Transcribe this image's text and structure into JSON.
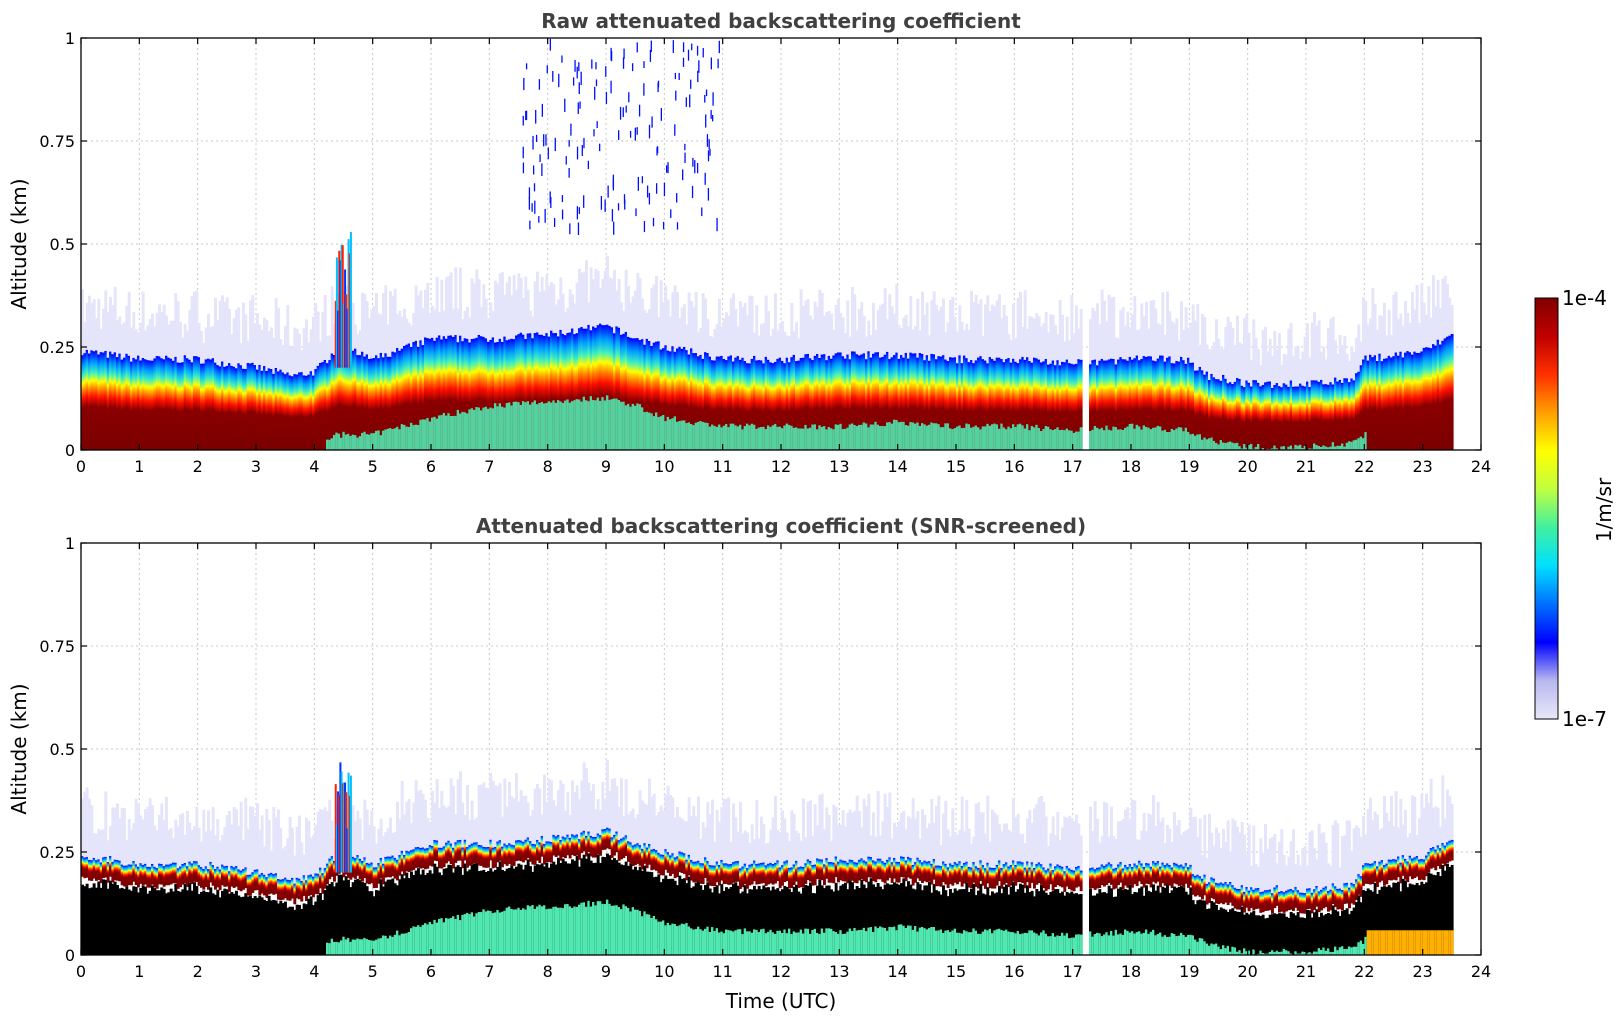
{
  "chart_data": [
    {
      "type": "heatmap",
      "title": "Raw attenuated backscattering coefficient",
      "xlabel": "",
      "ylabel": "Altitude (km)",
      "xlim": [
        0,
        24
      ],
      "ylim": [
        0,
        1
      ],
      "x_ticks": [
        "0",
        "1",
        "2",
        "3",
        "4",
        "5",
        "6",
        "7",
        "8",
        "9",
        "10",
        "11",
        "12",
        "13",
        "14",
        "15",
        "16",
        "17",
        "18",
        "19",
        "20",
        "21",
        "22",
        "23",
        "24"
      ],
      "y_ticks": [
        "0",
        "0.25",
        "0.5",
        "0.75",
        "1"
      ],
      "grid": true,
      "data_end_hour": 23.5,
      "gap_hour": 17.2,
      "layer_top_km": [
        [
          0,
          0.24
        ],
        [
          1,
          0.22
        ],
        [
          2,
          0.22
        ],
        [
          3,
          0.2
        ],
        [
          3.6,
          0.18
        ],
        [
          4,
          0.19
        ],
        [
          4.4,
          0.25
        ],
        [
          5,
          0.22
        ],
        [
          6,
          0.27
        ],
        [
          7,
          0.27
        ],
        [
          8,
          0.28
        ],
        [
          9,
          0.3
        ],
        [
          9.5,
          0.27
        ],
        [
          10,
          0.25
        ],
        [
          11,
          0.22
        ],
        [
          12,
          0.22
        ],
        [
          13,
          0.23
        ],
        [
          14,
          0.23
        ],
        [
          15,
          0.22
        ],
        [
          16,
          0.22
        ],
        [
          17,
          0.21
        ],
        [
          18,
          0.22
        ],
        [
          18.9,
          0.22
        ],
        [
          19.3,
          0.18
        ],
        [
          20,
          0.16
        ],
        [
          21,
          0.16
        ],
        [
          21.8,
          0.17
        ],
        [
          22,
          0.22
        ],
        [
          23,
          0.24
        ],
        [
          23.5,
          0.28
        ]
      ],
      "max_layer_km": [
        [
          0,
          0.09
        ],
        [
          1,
          0.09
        ],
        [
          2,
          0.09
        ],
        [
          3,
          0.09
        ],
        [
          3.6,
          0.1
        ],
        [
          4,
          0.09
        ],
        [
          4.5,
          0.1
        ],
        [
          5,
          0.1
        ],
        [
          6,
          0.14
        ],
        [
          7,
          0.17
        ],
        [
          8,
          0.18
        ],
        [
          9,
          0.19
        ],
        [
          9.5,
          0.17
        ],
        [
          10,
          0.14
        ],
        [
          11,
          0.12
        ],
        [
          12,
          0.12
        ],
        [
          13,
          0.12
        ],
        [
          14,
          0.13
        ],
        [
          15,
          0.12
        ],
        [
          16,
          0.12
        ],
        [
          17,
          0.11
        ],
        [
          18,
          0.12
        ],
        [
          18.9,
          0.11
        ],
        [
          19.5,
          0.08
        ],
        [
          20,
          0.07
        ],
        [
          21,
          0.07
        ],
        [
          21.8,
          0.08
        ],
        [
          22,
          0.1
        ],
        [
          23,
          0.11
        ],
        [
          23.5,
          0.13
        ]
      ]
    },
    {
      "type": "heatmap",
      "title": "Attenuated backscattering coefficient (SNR-screened)",
      "xlabel": "Time (UTC)",
      "ylabel": "Altitude (km)",
      "xlim": [
        0,
        24
      ],
      "ylim": [
        0,
        1
      ],
      "x_ticks": [
        "0",
        "1",
        "2",
        "3",
        "4",
        "5",
        "6",
        "7",
        "8",
        "9",
        "10",
        "11",
        "12",
        "13",
        "14",
        "15",
        "16",
        "17",
        "18",
        "19",
        "20",
        "21",
        "22",
        "23",
        "24"
      ],
      "y_ticks": [
        "0",
        "0.25",
        "0.5",
        "0.75",
        "1"
      ],
      "grid": true,
      "screened_color": "#000000"
    }
  ],
  "colorbar": {
    "label": "1/m/sr",
    "max_label": "1e-4",
    "min_label": "1e-7",
    "scale": "log",
    "colormap": [
      "#e8e8fa",
      "#b8b8f0",
      "#0000ff",
      "#0070ff",
      "#00e0ff",
      "#40f0a0",
      "#c0ff40",
      "#ffff00",
      "#ffa000",
      "#ff3000",
      "#c00000",
      "#800000"
    ]
  }
}
